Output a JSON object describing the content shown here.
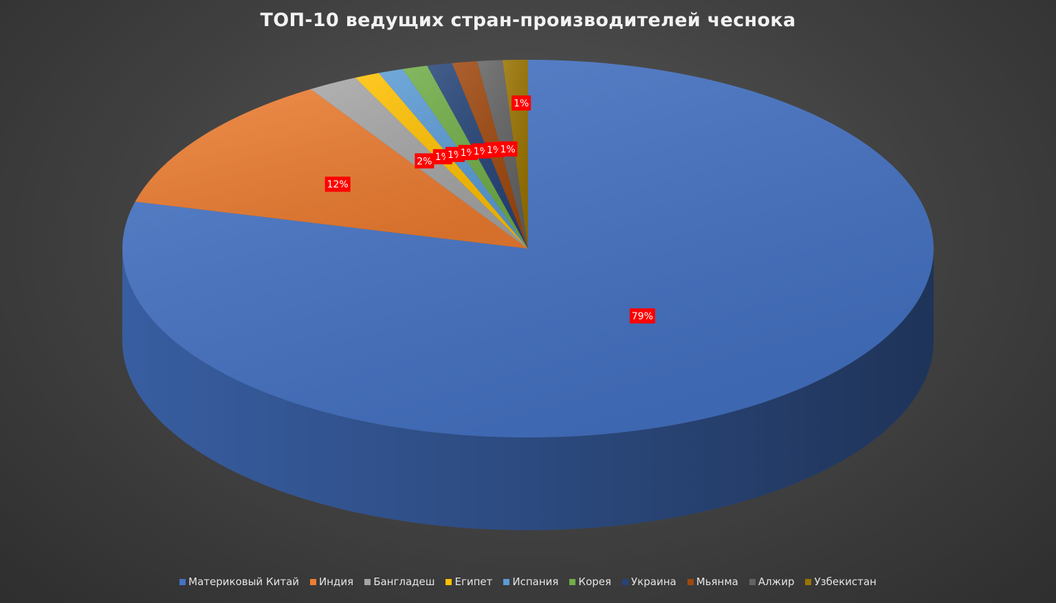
{
  "chart_data": {
    "type": "pie",
    "title": "ТОП-10 ведущих стран-производителей чеснока",
    "categories": [
      "Материковый Китай",
      "Индия",
      "Бангладеш",
      "Египет",
      "Испания",
      "Корея",
      "Украина",
      "Мьянма",
      "Алжир",
      "Узбекистан"
    ],
    "values": [
      79,
      12,
      2,
      1,
      1,
      1,
      1,
      1,
      1,
      1
    ],
    "data_labels": [
      "79%",
      "12%",
      "2%",
      "1%",
      "1%",
      "1%",
      "1%",
      "1%",
      "1%",
      "1%"
    ],
    "colors": [
      "#4472C4",
      "#ED7D31",
      "#A5A5A5",
      "#FFC000",
      "#5B9BD5",
      "#70AD47",
      "#264478",
      "#9E480E",
      "#636363",
      "#997300"
    ],
    "label_background": "#FF0000",
    "legend_position": "bottom",
    "style": "3d"
  }
}
